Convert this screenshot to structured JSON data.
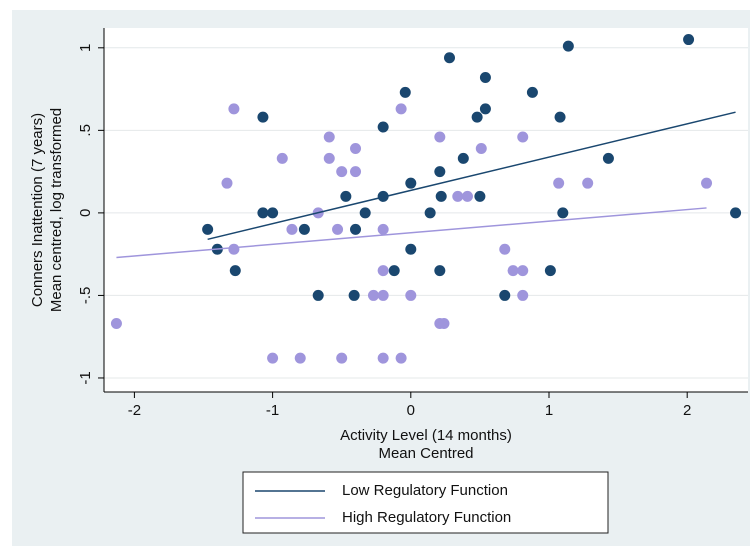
{
  "chart_data": {
    "type": "scatter",
    "x_label": [
      "Activity Level (14 months)",
      "Mean Centred"
    ],
    "y_label": [
      "Conners Inattention (7 years)",
      "Mean centred, log transformed"
    ],
    "xlim": [
      -2.22,
      2.44
    ],
    "ylim": [
      -1.085,
      1.12
    ],
    "xticks": [
      -2,
      -1,
      0,
      1,
      2
    ],
    "yticks": [
      {
        "value": -1,
        "label": "-1"
      },
      {
        "value": -0.5,
        "label": "-.5"
      },
      0,
      {
        "value": 0.5,
        "label": ".5"
      },
      1
    ],
    "grid": true,
    "series": [
      {
        "name": "Low Regulatory Function",
        "color": "#1a476f",
        "x": [
          -1.47,
          -1.4,
          -1.27,
          -1.07,
          -1.07,
          -1.0,
          -0.77,
          -0.67,
          -0.47,
          -0.41,
          -0.4,
          -0.33,
          -0.2,
          -0.2,
          -0.12,
          -0.04,
          0,
          0,
          0.14,
          0.21,
          0.21,
          0.22,
          0.28,
          0.38,
          0.48,
          0.5,
          0.54,
          0.54,
          0.68,
          0.88,
          1.01,
          1.08,
          1.1,
          1.14,
          1.43,
          2.01,
          2.35
        ],
        "y": [
          -0.1,
          -0.22,
          -0.35,
          0.58,
          0,
          0,
          -0.1,
          -0.5,
          0.1,
          -0.5,
          -0.1,
          0,
          0.52,
          0.1,
          -0.35,
          0.73,
          0.18,
          -0.22,
          0,
          0.25,
          -0.35,
          0.1,
          0.94,
          0.33,
          0.58,
          0.1,
          0.82,
          0.63,
          -0.5,
          0.73,
          -0.35,
          0.58,
          0,
          1.01,
          0.33,
          1.05,
          0
        ],
        "fit": {
          "x": [
            -1.47,
            2.35
          ],
          "y": [
            -0.16,
            0.61
          ]
        }
      },
      {
        "name": "High Regulatory Function",
        "color": "#9f95dc",
        "x": [
          -2.13,
          -1.33,
          -1.28,
          -1.28,
          -1.0,
          -0.93,
          -0.86,
          -0.8,
          -0.67,
          -0.59,
          -0.59,
          -0.53,
          -0.5,
          -0.5,
          -0.4,
          -0.4,
          -0.27,
          -0.2,
          -0.2,
          -0.2,
          -0.2,
          -0.07,
          -0.07,
          0,
          0.21,
          0.21,
          0.24,
          0.34,
          0.41,
          0.51,
          0.68,
          0.74,
          0.81,
          0.81,
          0.81,
          1.07,
          1.28,
          2.14
        ],
        "y": [
          -0.67,
          0.18,
          0.63,
          -0.22,
          -0.88,
          0.33,
          -0.1,
          -0.88,
          0,
          0.46,
          0.33,
          -0.1,
          -0.88,
          0.25,
          0.39,
          0.25,
          -0.5,
          -0.1,
          -0.35,
          -0.5,
          -0.88,
          0.63,
          -0.88,
          -0.5,
          0.46,
          -0.67,
          -0.67,
          0.1,
          0.1,
          0.39,
          -0.22,
          -0.35,
          0.46,
          -0.35,
          -0.5,
          0.18,
          0.18,
          0.18
        ],
        "fit": {
          "x": [
            -2.13,
            2.14
          ],
          "y": [
            -0.27,
            0.03
          ]
        }
      }
    ]
  }
}
